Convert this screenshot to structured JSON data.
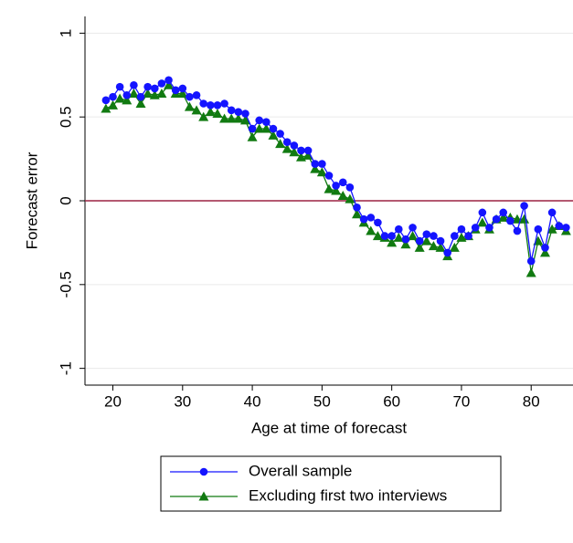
{
  "chart_data": {
    "type": "line",
    "xlabel": "Age at time of forecast",
    "ylabel": "Forecast error",
    "x": [
      19,
      20,
      21,
      22,
      23,
      24,
      25,
      26,
      27,
      28,
      29,
      30,
      31,
      32,
      33,
      34,
      35,
      36,
      37,
      38,
      39,
      40,
      41,
      42,
      43,
      44,
      45,
      46,
      47,
      48,
      49,
      50,
      51,
      52,
      53,
      54,
      55,
      56,
      57,
      58,
      59,
      60,
      61,
      62,
      63,
      64,
      65,
      66,
      67,
      68,
      69,
      70,
      71,
      72,
      73,
      74,
      75,
      76,
      77,
      78,
      79,
      80,
      81,
      82,
      83,
      84,
      85
    ],
    "series": [
      {
        "name": "Overall sample",
        "color": "#1414ff",
        "marker": "circle",
        "values": [
          0.6,
          0.62,
          0.68,
          0.63,
          0.69,
          0.62,
          0.68,
          0.67,
          0.7,
          0.72,
          0.66,
          0.67,
          0.62,
          0.63,
          0.58,
          0.57,
          0.57,
          0.58,
          0.54,
          0.53,
          0.52,
          0.43,
          0.48,
          0.47,
          0.43,
          0.4,
          0.35,
          0.33,
          0.3,
          0.3,
          0.22,
          0.22,
          0.15,
          0.09,
          0.11,
          0.08,
          -0.04,
          -0.11,
          -0.1,
          -0.13,
          -0.21,
          -0.21,
          -0.17,
          -0.23,
          -0.16,
          -0.24,
          -0.2,
          -0.21,
          -0.24,
          -0.31,
          -0.21,
          -0.17,
          -0.21,
          -0.16,
          -0.07,
          -0.16,
          -0.11,
          -0.07,
          -0.12,
          -0.18,
          -0.03,
          -0.36,
          -0.17,
          -0.28,
          -0.07,
          -0.15,
          -0.16
        ]
      },
      {
        "name": "Excluding first two interviews",
        "color": "#117a11",
        "marker": "triangle",
        "values": [
          0.55,
          0.57,
          0.61,
          0.6,
          0.64,
          0.58,
          0.64,
          0.63,
          0.64,
          0.69,
          0.64,
          0.64,
          0.56,
          0.54,
          0.5,
          0.53,
          0.52,
          0.49,
          0.49,
          0.49,
          0.48,
          0.38,
          0.43,
          0.43,
          0.39,
          0.34,
          0.31,
          0.29,
          0.26,
          0.27,
          0.19,
          0.17,
          0.07,
          0.06,
          0.03,
          0.01,
          -0.08,
          -0.13,
          -0.18,
          -0.21,
          -0.22,
          -0.25,
          -0.22,
          -0.26,
          -0.21,
          -0.28,
          -0.24,
          -0.27,
          -0.28,
          -0.33,
          -0.28,
          -0.22,
          -0.21,
          -0.17,
          -0.13,
          -0.17,
          -0.11,
          -0.1,
          -0.1,
          -0.11,
          -0.11,
          -0.43,
          -0.24,
          -0.31,
          -0.17,
          -0.15,
          -0.18
        ]
      }
    ],
    "reference_line": {
      "value": 0,
      "color": "#9b2242"
    },
    "xlim": [
      16,
      86
    ],
    "xticks": [
      20,
      30,
      40,
      50,
      60,
      70,
      80
    ],
    "ylim": [
      -1.1,
      1.1
    ],
    "yticks": [
      -1,
      -0.5,
      0,
      0.5,
      1
    ],
    "grid": true,
    "legend": "bottom"
  }
}
